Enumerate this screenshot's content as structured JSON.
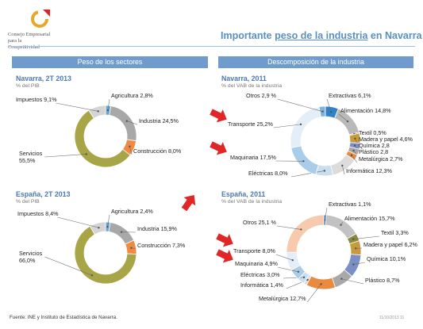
{
  "header": {
    "org_line1": "Consejo Empresarial",
    "org_line2": "para la",
    "org_line3": "Competitividad",
    "title_pre": "Importante ",
    "title_u": "peso de la industria",
    "title_post": " en Navarra"
  },
  "bands": {
    "left": "Peso de los sectores",
    "right": "Descomposición de la industria"
  },
  "footer": {
    "source": "Fuente: INE y Instituto de Estadística de Navarra.",
    "right": "11/10/2013   11"
  },
  "colors": {
    "agricultura": "#6aa8d6",
    "industria": "#a8a8a8",
    "construccion": "#ef8a43",
    "servicios": "#a8a546",
    "impuestos": "#d4d4d4",
    "arrow": "#e02626"
  },
  "chart_data": [
    {
      "type": "pie",
      "title": "Navarra, 2T 2013",
      "subtitle": "% del PIB",
      "slices": [
        {
          "label": "Agricultura 2,8%",
          "value": 2.8
        },
        {
          "label": "Industria 24,5%",
          "value": 24.5
        },
        {
          "label": "Construcción 8,0%",
          "value": 8.0
        },
        {
          "label": "Servicios\n55,5%",
          "value": 55.5
        },
        {
          "label": "Impuestos 9,1%",
          "value": 9.1
        }
      ]
    },
    {
      "type": "pie",
      "title": "Navarra, 2011",
      "subtitle": "% del VAB de la industria",
      "slices": [
        {
          "label": "Extractivas 6,1%",
          "value": 6.1
        },
        {
          "label": "Alimentación 14,8%",
          "value": 14.8
        },
        {
          "label": "Textil 0,5%",
          "value": 0.5
        },
        {
          "label": "Madera y papel 4,6%",
          "value": 4.6
        },
        {
          "label": "Química 2,8",
          "value": 2.8
        },
        {
          "label": "Plástico 2,8",
          "value": 2.8
        },
        {
          "label": "Metalúrgica 2,7%",
          "value": 2.7
        },
        {
          "label": "Informática 12,3%",
          "value": 12.3
        },
        {
          "label": "Eléctricas 8,0%",
          "value": 8.0
        },
        {
          "label": "Maquinaria 17,5%",
          "value": 17.5
        },
        {
          "label": "Transporte 25,2%",
          "value": 25.2
        },
        {
          "label": "Otros 2,9 %",
          "value": 2.9
        }
      ]
    },
    {
      "type": "pie",
      "title": "España, 2T 2013",
      "subtitle": "% del PIB",
      "slices": [
        {
          "label": "Agricultura 2,4%",
          "value": 2.4
        },
        {
          "label": "Industria 15,9%",
          "value": 15.9
        },
        {
          "label": "Construcción 7,3%",
          "value": 7.3
        },
        {
          "label": "Servicios\n66,0%",
          "value": 66.0
        },
        {
          "label": "Impuestos 8,4%",
          "value": 8.4
        }
      ]
    },
    {
      "type": "pie",
      "title": "España, 2011",
      "subtitle": "% del VAB de la industria",
      "slices": [
        {
          "label": "Extractivas 1,1%",
          "value": 1.1
        },
        {
          "label": "Alimentación 15,7%",
          "value": 15.7
        },
        {
          "label": "Textil 3,3%",
          "value": 3.3
        },
        {
          "label": "Madera y papel 6,2%",
          "value": 6.2
        },
        {
          "label": "Química 10,1%",
          "value": 10.1
        },
        {
          "label": "Plástico 8,7%",
          "value": 8.7
        },
        {
          "label": "Metalúrgica 12,7%",
          "value": 12.7
        },
        {
          "label": "Informática 1,4%",
          "value": 1.4
        },
        {
          "label": "Eléctricas 3,0%",
          "value": 3.0
        },
        {
          "label": "Maquinaria 4,9%",
          "value": 4.9
        },
        {
          "label": "Transporte 8,0%",
          "value": 8.0
        },
        {
          "label": "Otros 25,1 %",
          "value": 25.1
        }
      ]
    }
  ]
}
